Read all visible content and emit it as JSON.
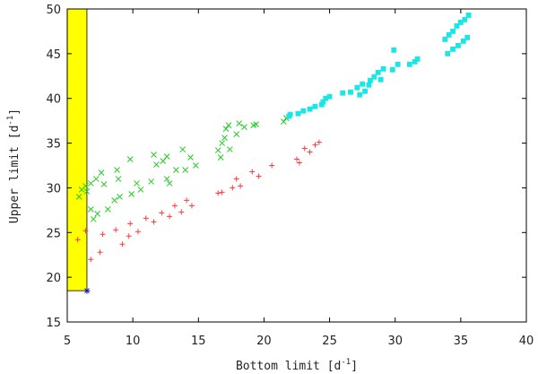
{
  "chart_data": {
    "type": "scatter",
    "xlabel": "Bottom limit [d-1]",
    "xlabel_parts": {
      "text": "Bottom limit [d",
      "sup": "-1",
      "end": "]"
    },
    "ylabel": "Upper limit [d-1]",
    "ylabel_parts": {
      "text": "Upper limit [d",
      "sup": "-1",
      "end": "]"
    },
    "xlim": [
      5,
      40
    ],
    "ylim": [
      15,
      50
    ],
    "xticks": [
      "5",
      "10",
      "15",
      "20",
      "25",
      "30",
      "35",
      "40"
    ],
    "yticks": [
      "15",
      "20",
      "25",
      "30",
      "35",
      "40",
      "45",
      "50"
    ],
    "grid": false,
    "shaded_region": {
      "x": [
        5,
        6.5
      ],
      "y": [
        18.5,
        50
      ],
      "color": "#ffff00"
    },
    "colors": {
      "red": "#ff3b3b",
      "green": "#22cc22",
      "cyan": "#19e6e6",
      "blue": "#1a1aa8",
      "frame": "#000000"
    },
    "series": [
      {
        "marker": "plus",
        "color": "#ff3b3b",
        "points": [
          [
            5.8,
            24.2
          ],
          [
            6.4,
            25.2
          ],
          [
            6.8,
            22.0
          ],
          [
            7.5,
            22.8
          ],
          [
            7.7,
            24.8
          ],
          [
            8.7,
            25.3
          ],
          [
            9.2,
            23.7
          ],
          [
            9.7,
            24.6
          ],
          [
            9.8,
            26.0
          ],
          [
            10.4,
            25.1
          ],
          [
            11.0,
            26.6
          ],
          [
            11.6,
            26.2
          ],
          [
            12.2,
            27.2
          ],
          [
            12.8,
            26.8
          ],
          [
            13.2,
            28.0
          ],
          [
            13.7,
            27.3
          ],
          [
            14.1,
            28.6
          ],
          [
            14.5,
            28.0
          ],
          [
            16.5,
            29.4
          ],
          [
            16.8,
            29.5
          ],
          [
            17.6,
            30.0
          ],
          [
            17.9,
            31.0
          ],
          [
            18.2,
            30.2
          ],
          [
            19.1,
            31.8
          ],
          [
            19.6,
            31.3
          ],
          [
            20.6,
            32.5
          ],
          [
            22.5,
            33.2
          ],
          [
            22.7,
            32.8
          ],
          [
            23.1,
            34.4
          ],
          [
            23.5,
            34.0
          ],
          [
            23.9,
            34.8
          ],
          [
            24.2,
            35.1
          ]
        ]
      },
      {
        "marker": "x",
        "color": "#22cc22",
        "points": [
          [
            5.9,
            29.0
          ],
          [
            6.1,
            29.8
          ],
          [
            6.4,
            30.2
          ],
          [
            6.5,
            29.6
          ],
          [
            6.8,
            30.5
          ],
          [
            6.8,
            27.6
          ],
          [
            7.0,
            26.5
          ],
          [
            7.3,
            27.1
          ],
          [
            7.2,
            31.0
          ],
          [
            7.6,
            31.7
          ],
          [
            7.8,
            30.4
          ],
          [
            8.1,
            27.6
          ],
          [
            8.6,
            28.6
          ],
          [
            8.8,
            32.0
          ],
          [
            8.9,
            31.0
          ],
          [
            9.0,
            29.0
          ],
          [
            9.9,
            29.3
          ],
          [
            9.8,
            33.2
          ],
          [
            10.3,
            30.5
          ],
          [
            10.6,
            29.8
          ],
          [
            11.4,
            30.7
          ],
          [
            11.6,
            33.7
          ],
          [
            11.8,
            32.6
          ],
          [
            12.3,
            33.0
          ],
          [
            12.6,
            33.5
          ],
          [
            12.6,
            31.0
          ],
          [
            12.8,
            30.5
          ],
          [
            13.3,
            32.0
          ],
          [
            13.8,
            34.3
          ],
          [
            14.0,
            32.0
          ],
          [
            14.4,
            33.4
          ],
          [
            14.8,
            32.5
          ],
          [
            16.5,
            34.2
          ],
          [
            16.7,
            33.4
          ],
          [
            16.8,
            35.0
          ],
          [
            17.0,
            35.6
          ],
          [
            17.1,
            36.6
          ],
          [
            17.4,
            34.3
          ],
          [
            17.3,
            37.0
          ],
          [
            17.9,
            36.0
          ],
          [
            18.1,
            37.2
          ],
          [
            18.5,
            36.8
          ],
          [
            19.2,
            37.0
          ],
          [
            19.4,
            37.1
          ],
          [
            21.5,
            37.4
          ],
          [
            21.7,
            37.8
          ]
        ]
      },
      {
        "marker": "square",
        "color": "#19e6e6",
        "points": [
          [
            21.9,
            38.0
          ],
          [
            22.0,
            38.2
          ],
          [
            22.6,
            38.3
          ],
          [
            23.0,
            38.6
          ],
          [
            23.5,
            38.8
          ],
          [
            23.9,
            39.1
          ],
          [
            24.4,
            39.3
          ],
          [
            24.5,
            39.6
          ],
          [
            24.7,
            40.0
          ],
          [
            25.0,
            40.2
          ],
          [
            26.0,
            40.6
          ],
          [
            26.6,
            40.7
          ],
          [
            27.1,
            41.2
          ],
          [
            27.5,
            41.6
          ],
          [
            27.3,
            40.4
          ],
          [
            27.7,
            40.8
          ],
          [
            28.0,
            41.5
          ],
          [
            28.1,
            42.0
          ],
          [
            28.4,
            42.4
          ],
          [
            28.7,
            42.9
          ],
          [
            28.9,
            42.1
          ],
          [
            29.1,
            43.3
          ],
          [
            29.8,
            43.2
          ],
          [
            30.2,
            43.8
          ],
          [
            29.9,
            45.4
          ],
          [
            31.1,
            43.8
          ],
          [
            31.5,
            44.1
          ],
          [
            31.7,
            44.4
          ],
          [
            33.8,
            46.6
          ],
          [
            34.1,
            47.1
          ],
          [
            34.4,
            47.5
          ],
          [
            34.7,
            48.1
          ],
          [
            35.0,
            48.5
          ],
          [
            35.3,
            48.8
          ],
          [
            35.6,
            49.3
          ],
          [
            34.0,
            45.0
          ],
          [
            34.4,
            45.5
          ],
          [
            34.8,
            45.9
          ],
          [
            35.2,
            46.4
          ],
          [
            35.5,
            46.8
          ]
        ]
      },
      {
        "marker": "star",
        "color": "#1a1aa8",
        "points": [
          [
            6.5,
            18.5
          ]
        ]
      }
    ]
  }
}
